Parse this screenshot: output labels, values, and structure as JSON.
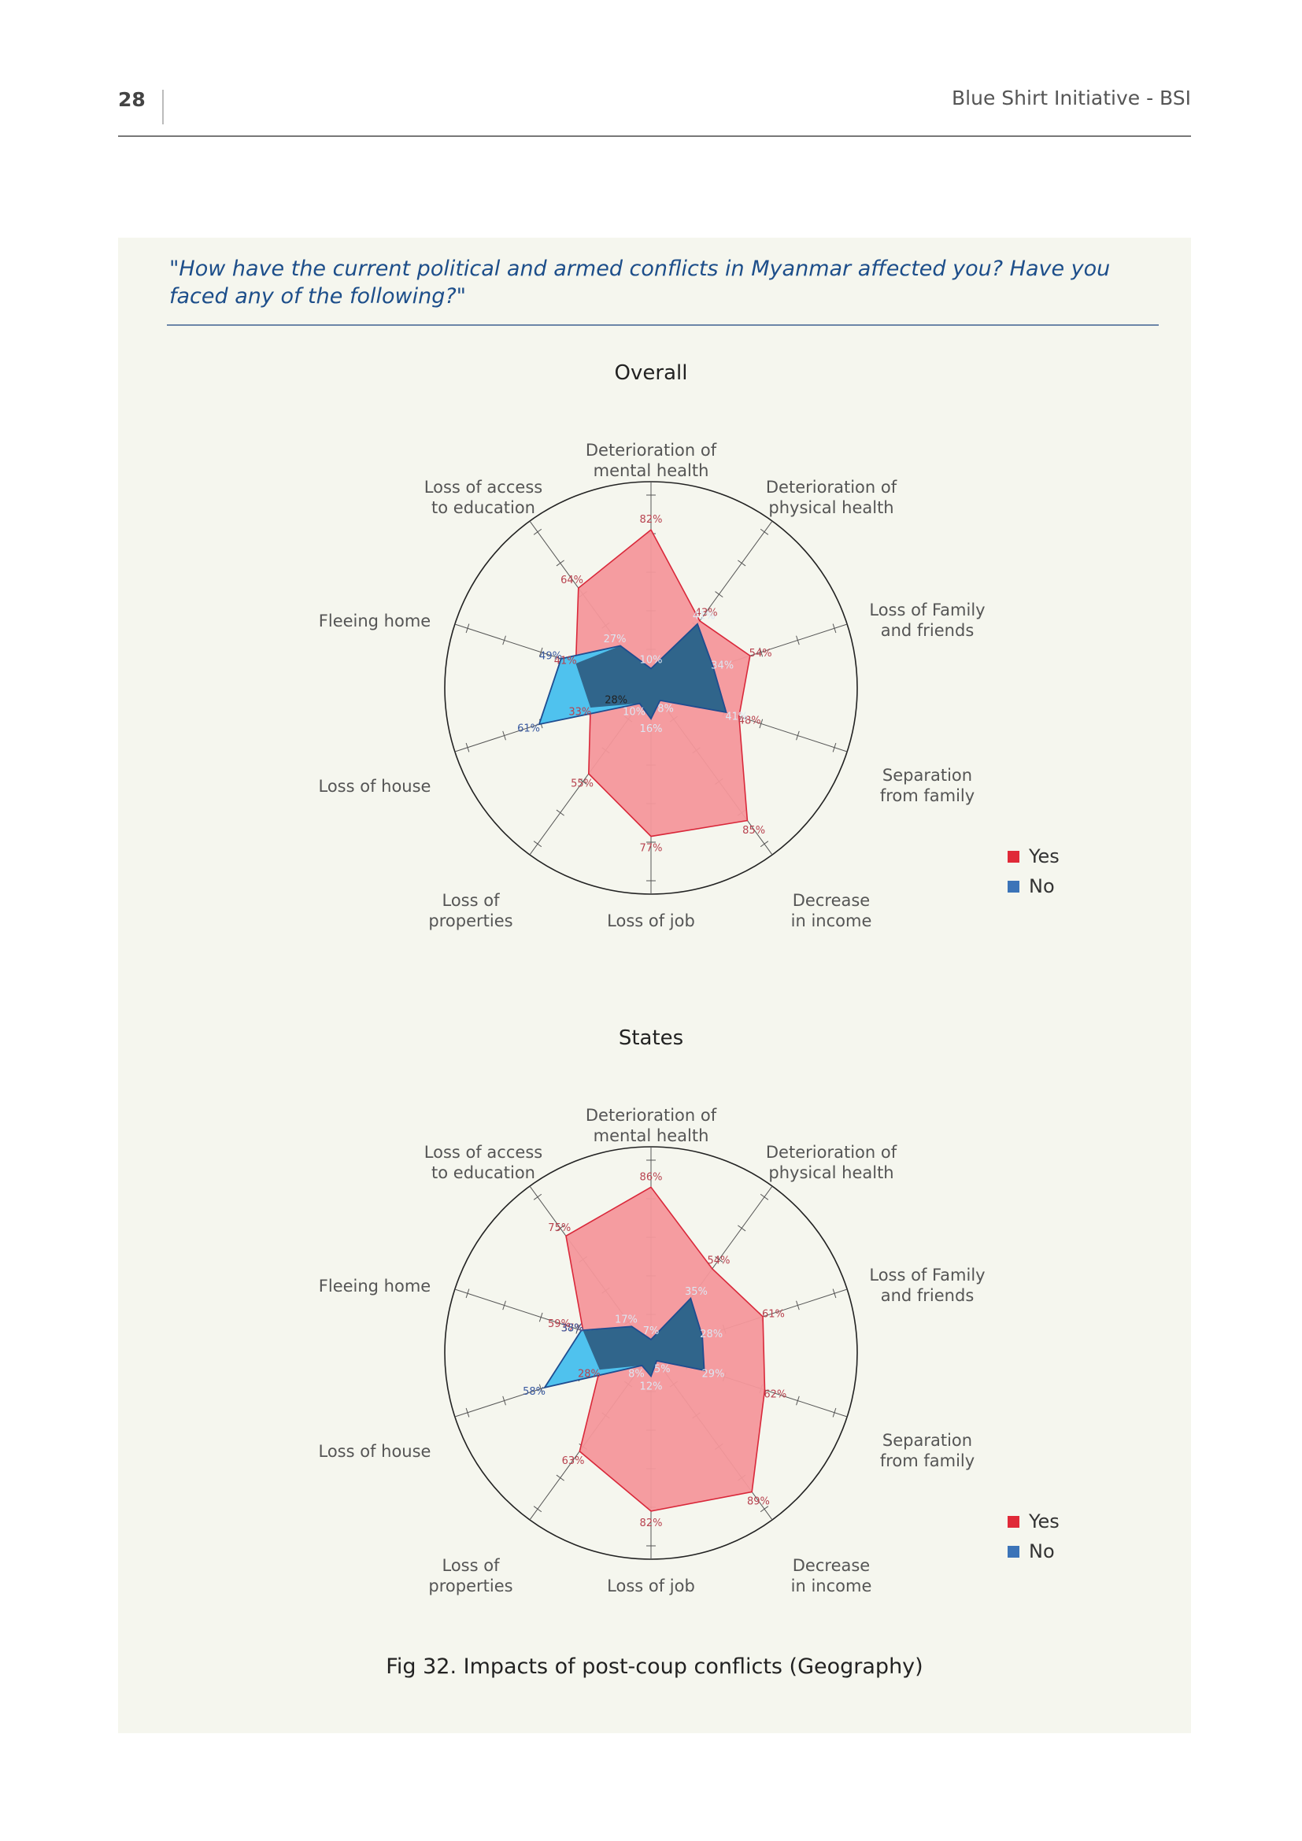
{
  "header": {
    "page_number": "28",
    "title": "Blue Shirt Initiative - BSI"
  },
  "question": "\"How have the current political and armed conflicts in Myanmar affected you? Have you faced any of the following?\"",
  "caption": "Fig 32. Impacts of post-coup conflicts (Geography)",
  "colors": {
    "yes_fill": "#f4979b",
    "yes_stroke": "#d9283a",
    "yes_text": "#b8424f",
    "no_fill": "#2e5d82",
    "no_light_fill": "#4fc2ee",
    "no_stroke": "#1f4c8f",
    "no_text": "#3a5aa0",
    "legend_yes": "#e02a38",
    "legend_no": "#3c74b8"
  },
  "legend": {
    "yes": "Yes",
    "no": "No"
  },
  "chart_data": [
    {
      "type": "radar",
      "title": "Overall",
      "axes": [
        [
          "Deterioration of",
          "mental health"
        ],
        [
          "Deterioration of",
          "physical health"
        ],
        [
          "Loss of Family",
          "and friends"
        ],
        [
          "Separation",
          "from family"
        ],
        [
          "Decrease",
          "in income"
        ],
        [
          "Loss of job"
        ],
        [
          "Loss of",
          "properties"
        ],
        [
          "Loss of house"
        ],
        [
          "Fleeing home"
        ],
        [
          "Loss of access",
          "to education"
        ]
      ],
      "rlim": [
        0,
        100
      ],
      "series": [
        {
          "name": "Yes",
          "values": [
            82,
            43,
            54,
            48,
            85,
            77,
            55,
            33,
            41,
            64
          ]
        },
        {
          "name": "No",
          "values": [
            10,
            41,
            34,
            41,
            8,
            16,
            10,
            61,
            49,
            27
          ]
        }
      ],
      "extra_labels": [
        {
          "axis": 7,
          "value": 28,
          "text": "28%"
        }
      ],
      "legend_placement": "right"
    },
    {
      "type": "radar",
      "title": "States",
      "axes": [
        [
          "Deterioration of",
          "mental health"
        ],
        [
          "Deterioration of",
          "physical health"
        ],
        [
          "Loss of Family",
          "and friends"
        ],
        [
          "Separation",
          "from family"
        ],
        [
          "Decrease",
          "in income"
        ],
        [
          "Loss of job"
        ],
        [
          "Loss of",
          "properties"
        ],
        [
          "Loss of house"
        ],
        [
          "Fleeing home"
        ],
        [
          "Loss of access",
          "to education"
        ]
      ],
      "rlim": [
        0,
        100
      ],
      "series": [
        {
          "name": "Yes",
          "values": [
            86,
            54,
            61,
            62,
            89,
            82,
            63,
            28,
            37,
            75
          ]
        },
        {
          "name": "No",
          "values": [
            7,
            35,
            28,
            29,
            5,
            12,
            8,
            58,
            38,
            17
          ]
        }
      ],
      "extra_labels": [
        {
          "axis": 8,
          "value": 59,
          "text": "59%"
        }
      ],
      "legend_placement": "right"
    }
  ]
}
